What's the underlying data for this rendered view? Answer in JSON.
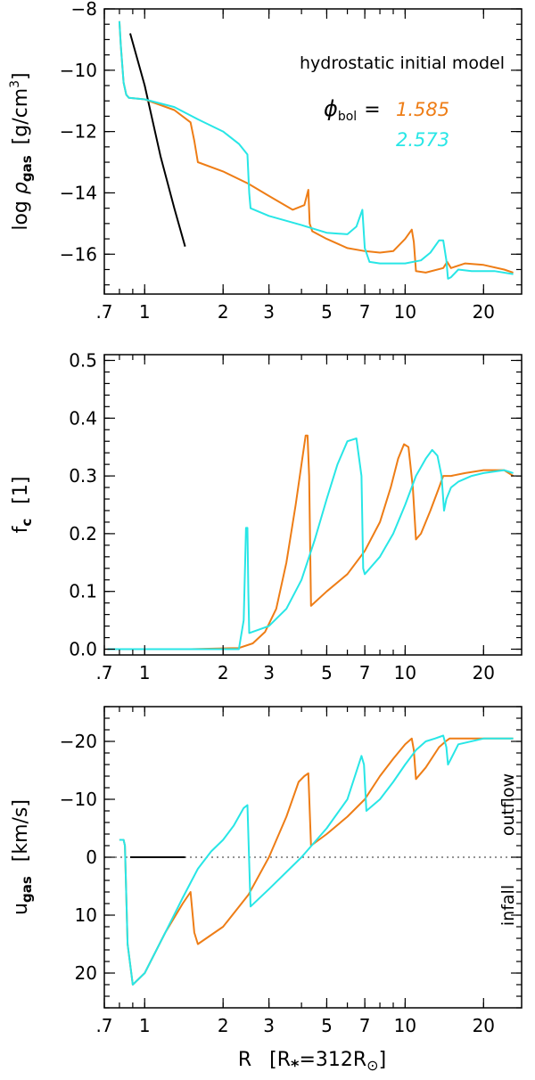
{
  "chart_data": [
    {
      "type": "line",
      "panel": "top",
      "ylabel": [
        "log ",
        "ρ",
        "gas",
        "[g/cm",
        "3",
        "]"
      ],
      "xlabel": "",
      "xscale": "log",
      "xlim": [
        0.7,
        28
      ],
      "ylim": [
        -8,
        -17.3
      ],
      "y_inverted": false,
      "yticks": [
        -8,
        -10,
        -12,
        -14,
        -16
      ],
      "xticks": [
        {
          "v": 0.7,
          "label": ".7"
        },
        {
          "v": 1,
          "label": "1"
        },
        {
          "v": 2,
          "label": "2"
        },
        {
          "v": 3,
          "label": "3"
        },
        {
          "v": 5,
          "label": "5"
        },
        {
          "v": 7,
          "label": "7"
        },
        {
          "v": 10,
          "label": "10"
        },
        {
          "v": 20,
          "label": "20"
        }
      ],
      "annotations": {
        "title": "hydrostatic initial model",
        "phi_symbol": "ϕ",
        "phi_sub": "bol",
        "equals": "=",
        "phi_values": [
          "1.585",
          "2.573"
        ]
      },
      "series": [
        {
          "color": "#000000",
          "x": [
            0.88,
            1.0,
            1.15,
            1.3,
            1.43
          ],
          "y": [
            -8.8,
            -10.5,
            -12.8,
            -14.5,
            -15.75
          ]
        },
        {
          "color": "#ee7d16",
          "x": [
            0.8,
            0.81,
            0.83,
            0.85,
            0.87,
            1.0,
            1.3,
            1.5,
            1.55,
            1.6,
            2.0,
            2.5,
            3.0,
            3.7,
            4.1,
            4.25,
            4.3,
            4.4,
            5.0,
            6.0,
            7.0,
            8.0,
            9.0,
            10.0,
            10.6,
            10.8,
            11.0,
            12.0,
            14.0,
            14.5,
            15.0,
            17.0,
            20.0,
            24.0,
            26.0
          ],
          "y": [
            -8.4,
            -9.2,
            -10.4,
            -10.8,
            -10.9,
            -10.95,
            -11.3,
            -11.7,
            -12.3,
            -13.0,
            -13.3,
            -13.7,
            -14.1,
            -14.55,
            -14.4,
            -13.9,
            -15.0,
            -15.25,
            -15.5,
            -15.8,
            -15.9,
            -15.95,
            -15.9,
            -15.5,
            -15.2,
            -15.6,
            -16.55,
            -16.6,
            -16.45,
            -16.25,
            -16.45,
            -16.3,
            -16.35,
            -16.5,
            -16.6
          ]
        },
        {
          "color": "#28e6e6",
          "x": [
            0.8,
            0.81,
            0.83,
            0.85,
            0.87,
            1.0,
            1.3,
            1.6,
            2.0,
            2.3,
            2.48,
            2.52,
            2.55,
            3.0,
            4.0,
            5.0,
            6.0,
            6.5,
            6.85,
            7.0,
            7.3,
            8.0,
            10.0,
            11.5,
            12.5,
            13.5,
            14.0,
            14.4,
            14.6,
            15.0,
            16.0,
            18.0,
            22.0,
            26.0
          ],
          "y": [
            -8.4,
            -9.2,
            -10.4,
            -10.8,
            -10.9,
            -10.95,
            -11.2,
            -11.6,
            -12.0,
            -12.4,
            -12.75,
            -14.0,
            -14.5,
            -14.75,
            -15.05,
            -15.3,
            -15.35,
            -15.1,
            -14.55,
            -15.8,
            -16.25,
            -16.3,
            -16.3,
            -16.2,
            -15.95,
            -15.55,
            -15.55,
            -16.2,
            -16.8,
            -16.75,
            -16.5,
            -16.55,
            -16.55,
            -16.65
          ]
        }
      ]
    },
    {
      "type": "line",
      "panel": "middle",
      "ylabel": [
        "f",
        "c",
        "[1]"
      ],
      "xlabel": "",
      "xscale": "log",
      "xlim": [
        0.7,
        28
      ],
      "ylim": [
        0.51,
        -0.01
      ],
      "y_inverted": false,
      "yticks": [
        {
          "v": 0.0,
          "label": "0.0"
        },
        {
          "v": 0.1,
          "label": "0.1"
        },
        {
          "v": 0.2,
          "label": "0.2"
        },
        {
          "v": 0.3,
          "label": "0.3"
        },
        {
          "v": 0.4,
          "label": "0.4"
        },
        {
          "v": 0.5,
          "label": "0.5"
        }
      ],
      "xticks": [
        {
          "v": 0.7,
          "label": ".7"
        },
        {
          "v": 1,
          "label": "1"
        },
        {
          "v": 2,
          "label": "2"
        },
        {
          "v": 3,
          "label": "3"
        },
        {
          "v": 5,
          "label": "5"
        },
        {
          "v": 7,
          "label": "7"
        },
        {
          "v": 10,
          "label": "10"
        },
        {
          "v": 20,
          "label": "20"
        }
      ],
      "series": [
        {
          "color": "#000000",
          "x": [
            0.88,
            1.43
          ],
          "y": [
            0.0,
            0.0
          ]
        },
        {
          "color": "#ee7d16",
          "x": [
            0.72,
            1.5,
            2.3,
            2.6,
            2.9,
            3.2,
            3.5,
            3.8,
            4.0,
            4.15,
            4.22,
            4.28,
            4.35,
            5.0,
            6.0,
            7.0,
            8.0,
            8.8,
            9.4,
            9.9,
            10.3,
            10.7,
            11.0,
            11.5,
            12.5,
            13.5,
            14.0,
            15.0,
            17.0,
            20.0,
            24.0,
            26.0
          ],
          "y": [
            0.0,
            0.0,
            0.002,
            0.01,
            0.03,
            0.07,
            0.15,
            0.25,
            0.32,
            0.37,
            0.37,
            0.3,
            0.075,
            0.1,
            0.13,
            0.17,
            0.22,
            0.28,
            0.33,
            0.355,
            0.35,
            0.28,
            0.19,
            0.2,
            0.24,
            0.28,
            0.3,
            0.3,
            0.305,
            0.31,
            0.31,
            0.3
          ]
        },
        {
          "color": "#28e6e6",
          "x": [
            0.72,
            2.3,
            2.4,
            2.45,
            2.48,
            2.5,
            2.52,
            3.0,
            3.5,
            4.0,
            4.5,
            5.0,
            5.5,
            6.0,
            6.5,
            6.8,
            6.9,
            7.0,
            8.0,
            9.0,
            10.0,
            11.0,
            12.0,
            12.7,
            13.3,
            13.8,
            14.1,
            14.4,
            15.0,
            16.0,
            18.0,
            20.0,
            24.0,
            26.0
          ],
          "y": [
            0.0,
            0.0,
            0.05,
            0.21,
            0.21,
            0.1,
            0.028,
            0.04,
            0.07,
            0.12,
            0.19,
            0.26,
            0.32,
            0.36,
            0.365,
            0.3,
            0.14,
            0.13,
            0.16,
            0.2,
            0.25,
            0.3,
            0.33,
            0.345,
            0.335,
            0.3,
            0.24,
            0.26,
            0.28,
            0.29,
            0.3,
            0.305,
            0.31,
            0.305
          ]
        }
      ]
    },
    {
      "type": "line",
      "panel": "bottom",
      "ylabel": [
        "u",
        "gas",
        "[km/s]"
      ],
      "xlabel": [
        "R",
        "[R",
        "*",
        "=312R",
        "⊙",
        "]"
      ],
      "xscale": "log",
      "xlim": [
        0.7,
        28
      ],
      "ylim": [
        -26,
        26
      ],
      "y_inverted": true,
      "yticks": [
        {
          "v": -20,
          "label": "−20"
        },
        {
          "v": -10,
          "label": "−10"
        },
        {
          "v": 0,
          "label": "0"
        },
        {
          "v": 10,
          "label": "10"
        },
        {
          "v": 20,
          "label": "20"
        }
      ],
      "xticks": [
        {
          "v": 0.7,
          "label": ".7"
        },
        {
          "v": 1,
          "label": "1"
        },
        {
          "v": 2,
          "label": "2"
        },
        {
          "v": 3,
          "label": "3"
        },
        {
          "v": 5,
          "label": "5"
        },
        {
          "v": 7,
          "label": "7"
        },
        {
          "v": 10,
          "label": "10"
        },
        {
          "v": 20,
          "label": "20"
        }
      ],
      "annotations": {
        "outflow": "outflow",
        "infall": "infall"
      },
      "series": [
        {
          "color": "#000000",
          "x": [
            0.88,
            1.43
          ],
          "y": [
            0,
            0
          ]
        },
        {
          "color": "#ee7d16",
          "x": [
            0.8,
            0.83,
            0.84,
            0.86,
            0.9,
            1.0,
            1.2,
            1.4,
            1.5,
            1.55,
            1.6,
            2.0,
            2.5,
            3.0,
            3.5,
            3.9,
            4.1,
            4.25,
            4.35,
            5.0,
            6.0,
            7.0,
            8.0,
            9.0,
            10.0,
            10.6,
            10.8,
            11.0,
            12.0,
            13.5,
            14.3,
            14.8,
            15.0,
            17.0,
            20.0,
            26.0
          ],
          "y": [
            -3,
            -3,
            -2,
            15,
            22,
            20,
            13,
            8,
            6,
            13,
            15,
            12,
            6.5,
            0,
            -7,
            -13,
            -14,
            -14.5,
            -2,
            -4,
            -7,
            -10,
            -14,
            -17,
            -19.5,
            -20.5,
            -18.5,
            -13.5,
            -15.5,
            -19,
            -20,
            -20.5,
            -20.5,
            -20.5,
            -20.5,
            -20.5
          ]
        },
        {
          "color": "#28e6e6",
          "x": [
            0.8,
            0.83,
            0.84,
            0.86,
            0.9,
            1.0,
            1.2,
            1.4,
            1.6,
            1.8,
            2.0,
            2.2,
            2.4,
            2.48,
            2.55,
            3.0,
            4.0,
            5.0,
            6.0,
            6.8,
            6.95,
            7.1,
            8.0,
            9.0,
            10.0,
            11.0,
            12.0,
            13.0,
            14.0,
            14.4,
            14.6,
            15.0,
            16.0,
            20.0,
            26.0
          ],
          "y": [
            -3,
            -3,
            -2,
            15,
            22,
            20,
            13,
            7,
            2,
            -1,
            -3,
            -5.5,
            -8.5,
            -9,
            8.5,
            5.5,
            0,
            -5,
            -10,
            -17.5,
            -16,
            -8,
            -10,
            -13,
            -16,
            -18.5,
            -20,
            -20.5,
            -21,
            -19,
            -16,
            -17,
            -19.5,
            -20.5,
            -20.5
          ]
        }
      ]
    }
  ]
}
